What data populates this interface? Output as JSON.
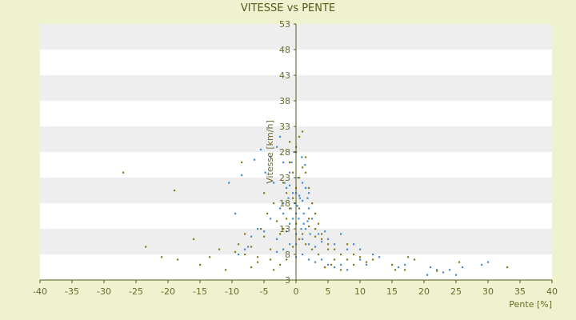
{
  "chart_data": {
    "type": "scatter",
    "title": "VITESSE vs PENTE",
    "xlabel": "Pente [%]",
    "ylabel": "Vitesse [km/h]",
    "xlim": [
      -40,
      40
    ],
    "ylim": [
      3,
      53
    ],
    "x_ticks": [
      "-40",
      "-35",
      "-30",
      "-25",
      "-20",
      "-15",
      "-10",
      "-5",
      "0",
      "5",
      "10",
      "15",
      "20",
      "25",
      "30",
      "35",
      "40"
    ],
    "y_ticks": [
      "3",
      "8",
      "13",
      "18",
      "23",
      "28",
      "33",
      "38",
      "43",
      "48",
      "53"
    ],
    "grid": "alternating horizontal bands",
    "legend": "none",
    "colors": {
      "background": "#eef2cf",
      "band_light": "#ffffff",
      "band_dark": "#eeeeee",
      "series_a": "#3b8fd8",
      "series_b": "#8a7a10",
      "axis": "#555a1a",
      "text": "#6a6a2a"
    },
    "series": [
      {
        "color": "#3b8fd8",
        "points": [
          [
            -10.5,
            22
          ],
          [
            -8.5,
            23.5
          ],
          [
            -6.5,
            26.5
          ],
          [
            -5.5,
            28.5
          ],
          [
            -4.8,
            24
          ],
          [
            -4,
            27
          ],
          [
            -3.5,
            22
          ],
          [
            -3,
            29
          ],
          [
            -2.5,
            31
          ],
          [
            -2,
            26
          ],
          [
            -1.8,
            22
          ],
          [
            -1.5,
            21
          ],
          [
            -1.2,
            19
          ],
          [
            -1,
            21.5
          ],
          [
            -0.8,
            17
          ],
          [
            -0.5,
            20
          ],
          [
            -0.2,
            18
          ],
          [
            0,
            16
          ],
          [
            0.2,
            17.5
          ],
          [
            0.4,
            15
          ],
          [
            0.6,
            19
          ],
          [
            0.8,
            13
          ],
          [
            1,
            18.5
          ],
          [
            1.2,
            16
          ],
          [
            1.5,
            21
          ],
          [
            1.8,
            14.5
          ],
          [
            2,
            17
          ],
          [
            2.2,
            12
          ],
          [
            2.5,
            15
          ],
          [
            3,
            13
          ],
          [
            -7,
            11.5
          ],
          [
            -6,
            13
          ],
          [
            -5,
            12.5
          ],
          [
            -4,
            15
          ],
          [
            -3,
            11
          ],
          [
            -2,
            16
          ],
          [
            -1,
            14
          ],
          [
            0,
            12
          ],
          [
            1,
            11
          ],
          [
            2,
            10
          ],
          [
            3,
            9.5
          ],
          [
            4,
            10.5
          ],
          [
            5,
            11
          ],
          [
            6,
            10
          ],
          [
            7,
            12
          ],
          [
            8,
            9
          ],
          [
            9,
            10
          ],
          [
            10,
            9
          ],
          [
            12,
            8
          ],
          [
            13,
            7.5
          ],
          [
            -3,
            8.5
          ],
          [
            -2,
            9
          ],
          [
            -1,
            10
          ],
          [
            0,
            7.5
          ],
          [
            1,
            8
          ],
          [
            2,
            7
          ],
          [
            3,
            6.5
          ],
          [
            4,
            7
          ],
          [
            5,
            6
          ],
          [
            6,
            5.5
          ],
          [
            7,
            6
          ],
          [
            8,
            5
          ],
          [
            10,
            7
          ],
          [
            11,
            6
          ],
          [
            16,
            5.5
          ],
          [
            17,
            6
          ],
          [
            21,
            5.5
          ],
          [
            22,
            5
          ],
          [
            24,
            5
          ],
          [
            25,
            4
          ],
          [
            26,
            5.5
          ],
          [
            29,
            6
          ],
          [
            30,
            6.5
          ],
          [
            -9.5,
            16
          ],
          [
            -2.5,
            17
          ],
          [
            1.5,
            13
          ],
          [
            0.5,
            19.5
          ],
          [
            -1,
            24
          ],
          [
            0,
            20
          ],
          [
            1,
            22
          ],
          [
            2,
            20
          ],
          [
            -2,
            18
          ],
          [
            -0.5,
            15
          ],
          [
            1.2,
            14
          ],
          [
            -1.5,
            12.5
          ],
          [
            2.5,
            18
          ],
          [
            1.8,
            19
          ],
          [
            0.3,
            23
          ],
          [
            -0.7,
            26
          ],
          [
            0.9,
            27
          ],
          [
            -0.3,
            28
          ],
          [
            1.4,
            25.5
          ],
          [
            3.5,
            12
          ],
          [
            4.5,
            12.5
          ],
          [
            -8,
            9
          ],
          [
            -9,
            8
          ],
          [
            -7.5,
            9.5
          ],
          [
            20.5,
            4
          ],
          [
            23,
            4.5
          ],
          [
            0,
            10
          ]
        ]
      },
      {
        "color": "#8a7a10",
        "points": [
          [
            -27,
            24
          ],
          [
            -19,
            20.5
          ],
          [
            -23.5,
            9.5
          ],
          [
            -21,
            7.5
          ],
          [
            -18.5,
            7
          ],
          [
            -15,
            6
          ],
          [
            -13.5,
            7.5
          ],
          [
            -11,
            5
          ],
          [
            -9.5,
            8.5
          ],
          [
            -9,
            10
          ],
          [
            -8,
            8
          ],
          [
            -7,
            5.5
          ],
          [
            -6,
            7.5
          ],
          [
            -5,
            11.5
          ],
          [
            -4,
            9
          ],
          [
            -3,
            14.5
          ],
          [
            -2.5,
            12
          ],
          [
            -2,
            13
          ],
          [
            -1.5,
            15
          ],
          [
            -1,
            17
          ],
          [
            -0.5,
            19
          ],
          [
            0,
            21
          ],
          [
            0.5,
            23
          ],
          [
            1,
            25
          ],
          [
            1.5,
            27
          ],
          [
            0,
            29
          ],
          [
            -1,
            30
          ],
          [
            0.5,
            31
          ],
          [
            1,
            32
          ],
          [
            -0.5,
            24
          ],
          [
            2,
            21
          ],
          [
            2.5,
            18
          ],
          [
            3,
            16
          ],
          [
            3.5,
            14
          ],
          [
            4,
            12
          ],
          [
            5,
            10
          ],
          [
            6,
            9
          ],
          [
            7,
            8
          ],
          [
            8,
            7
          ],
          [
            9,
            6
          ],
          [
            10,
            7.5
          ],
          [
            11,
            6.5
          ],
          [
            12,
            7
          ],
          [
            15,
            6
          ],
          [
            15.5,
            5
          ],
          [
            17,
            5
          ],
          [
            17.5,
            7.5
          ],
          [
            18.5,
            7
          ],
          [
            22,
            4.8
          ],
          [
            25.5,
            6.5
          ],
          [
            33,
            5.5
          ],
          [
            -12,
            9
          ],
          [
            -16,
            11
          ],
          [
            -5.5,
            13
          ],
          [
            -4.5,
            16
          ],
          [
            -3.5,
            18
          ],
          [
            -2,
            22
          ],
          [
            -1,
            26
          ],
          [
            0,
            28
          ],
          [
            1.5,
            24
          ],
          [
            2,
            15
          ],
          [
            3,
            13
          ],
          [
            4,
            11
          ],
          [
            5,
            9
          ],
          [
            6,
            7
          ],
          [
            7,
            5
          ],
          [
            4.5,
            5.5
          ],
          [
            5.5,
            6
          ],
          [
            3.5,
            8
          ],
          [
            2.5,
            9
          ],
          [
            1.5,
            10
          ],
          [
            0.5,
            11
          ],
          [
            -0.5,
            9.5
          ],
          [
            -1.5,
            7
          ],
          [
            -2.5,
            6
          ],
          [
            -3.5,
            5
          ],
          [
            -4,
            7
          ],
          [
            -6,
            6.5
          ],
          [
            -7,
            9.5
          ],
          [
            -8,
            12
          ],
          [
            -8.5,
            26
          ],
          [
            -5,
            20
          ],
          [
            0,
            14
          ],
          [
            1,
            12
          ],
          [
            2,
            13.5
          ],
          [
            3,
            11.5
          ],
          [
            8,
            10
          ],
          [
            9,
            8
          ],
          [
            -1.5,
            20
          ],
          [
            0.5,
            17
          ]
        ]
      }
    ]
  }
}
